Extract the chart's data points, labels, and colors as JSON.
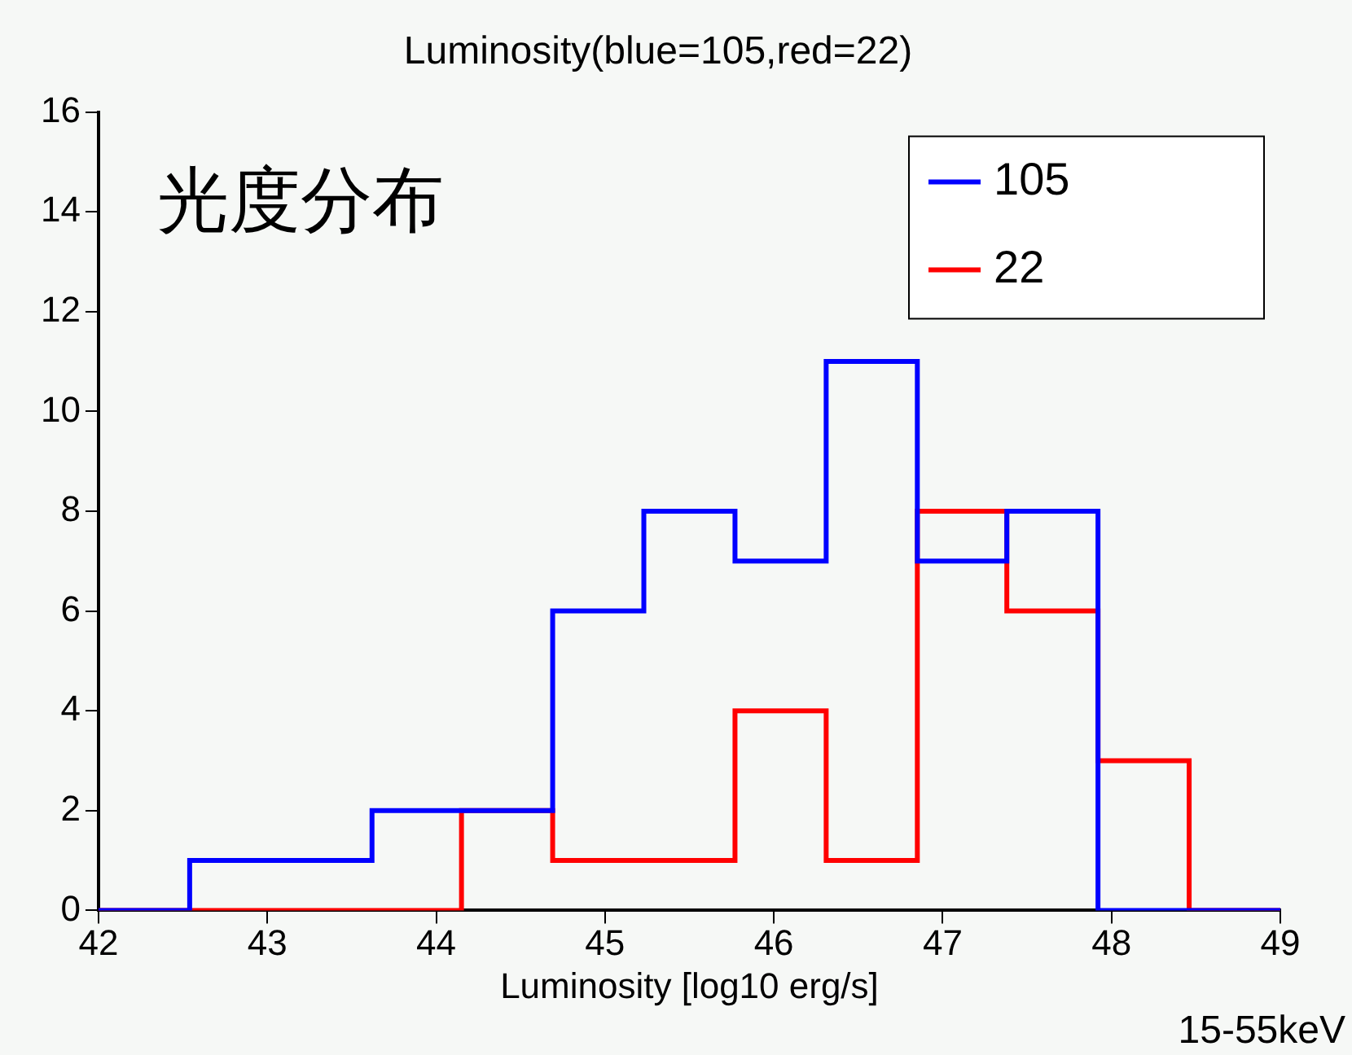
{
  "chart_data": {
    "type": "histogram",
    "title": "Luminosity(blue=105,red=22)",
    "xlabel": "Luminosity [log10 erg/s]",
    "annotations": [
      "光度分布",
      "15-55keV"
    ],
    "bins": [
      42,
      42.54,
      43.08,
      43.62,
      44.15,
      44.69,
      45.23,
      45.77,
      46.31,
      46.85,
      47.38,
      47.92,
      48.46,
      49
    ],
    "series": [
      {
        "name": "105",
        "color": "#0000ff",
        "values": [
          0,
          1,
          1,
          2,
          2,
          6,
          8,
          7,
          11,
          7,
          8,
          0,
          0
        ]
      },
      {
        "name": "22",
        "color": "#ff0000",
        "values": [
          0,
          0,
          0,
          0,
          2,
          1,
          1,
          4,
          1,
          8,
          6,
          3,
          0
        ]
      }
    ],
    "xlim": [
      42,
      49
    ],
    "xticks": [
      42,
      43,
      44,
      45,
      46,
      47,
      48,
      49
    ],
    "ylim": [
      0,
      16
    ],
    "yticks": [
      0,
      2,
      4,
      6,
      8,
      10,
      12,
      14,
      16
    ],
    "legend": "top right",
    "grid": false
  }
}
